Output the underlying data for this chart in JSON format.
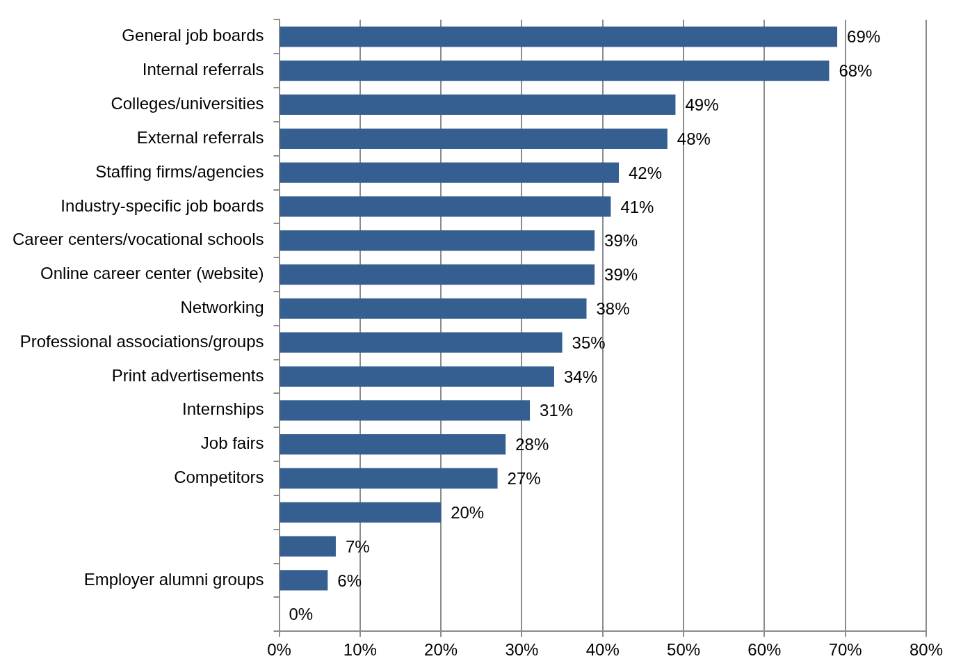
{
  "chart_data": {
    "type": "bar",
    "orientation": "horizontal",
    "categories": [
      "General job boards",
      "Internal referrals",
      "Colleges/universities",
      "External referrals",
      "Staffing firms/agencies",
      "Industry-specific job boards",
      "Career centers/vocational schools",
      "Online career center (website)",
      "Networking",
      "Professional associations/groups",
      "Print advertisements",
      "Internships",
      "Job fairs",
      "Competitors",
      null,
      null,
      "Employer alumni groups",
      null
    ],
    "values": [
      69,
      68,
      49,
      48,
      42,
      41,
      39,
      39,
      38,
      35,
      34,
      31,
      28,
      27,
      20,
      7,
      6,
      0
    ],
    "value_labels": [
      "69%",
      "68%",
      "49%",
      "48%",
      "42%",
      "41%",
      "39%",
      "39%",
      "38%",
      "35%",
      "34%",
      "31%",
      "28%",
      "27%",
      "20%",
      "7%",
      "6%",
      "0%"
    ],
    "color": "#355f91",
    "xlim": [
      0,
      80
    ],
    "xticks": [
      {
        "value": 0,
        "label": "0%"
      },
      {
        "value": 10,
        "label": "10%"
      },
      {
        "value": 20,
        "label": "20%"
      },
      {
        "value": 30,
        "label": "30%"
      },
      {
        "value": 40,
        "label": "40%"
      },
      {
        "value": 50,
        "label": "50%"
      },
      {
        "value": 60,
        "label": "60%"
      },
      {
        "value": 70,
        "label": "70%"
      },
      {
        "value": 80,
        "label": "80%"
      }
    ],
    "grid": "x",
    "legend": false
  }
}
